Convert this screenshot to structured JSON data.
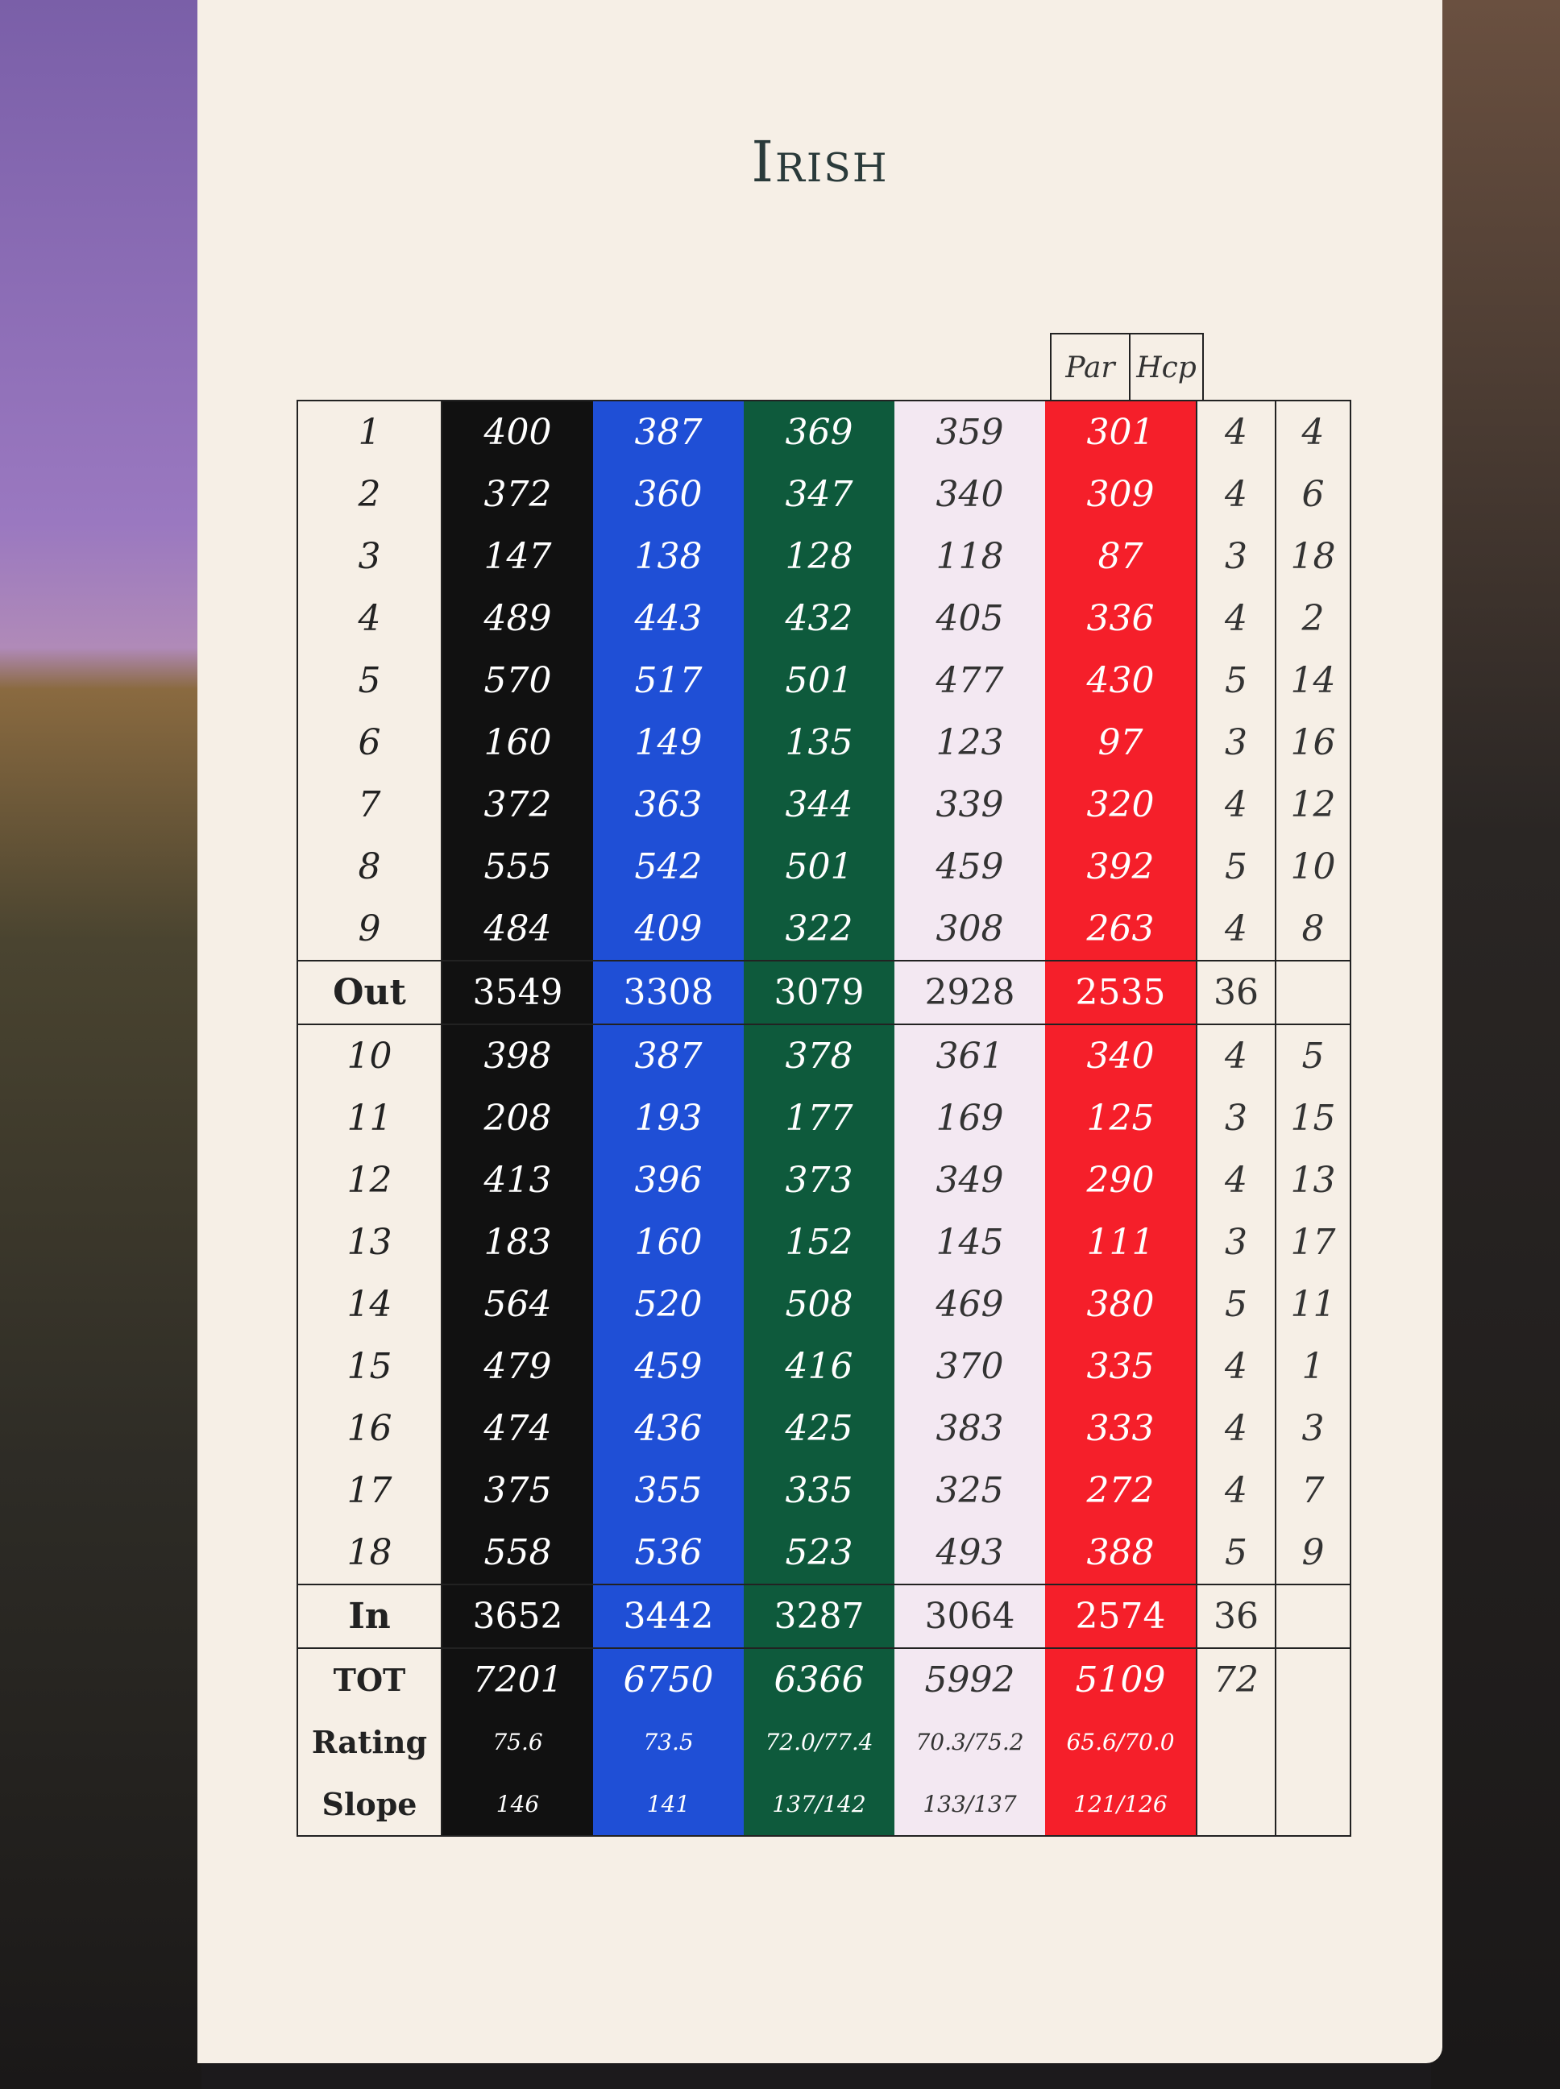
{
  "title": "Irish",
  "header": {
    "par": "Par",
    "hcp": "Hcp"
  },
  "tees": [
    {
      "color": "#111111",
      "text": "#ffffff"
    },
    {
      "color": "#1f4fd6",
      "text": "#ffffff"
    },
    {
      "color": "#0e5a3c",
      "text": "#ffffff"
    },
    {
      "color": "#f3e8f2",
      "text": "#333333"
    },
    {
      "color": "#f51f2a",
      "text": "#ffffff"
    }
  ],
  "rows": [
    {
      "label": "1",
      "yards": [
        "400",
        "387",
        "369",
        "359",
        "301"
      ],
      "par": "4",
      "hcp": "4"
    },
    {
      "label": "2",
      "yards": [
        "372",
        "360",
        "347",
        "340",
        "309"
      ],
      "par": "4",
      "hcp": "6"
    },
    {
      "label": "3",
      "yards": [
        "147",
        "138",
        "128",
        "118",
        "87"
      ],
      "par": "3",
      "hcp": "18"
    },
    {
      "label": "4",
      "yards": [
        "489",
        "443",
        "432",
        "405",
        "336"
      ],
      "par": "4",
      "hcp": "2"
    },
    {
      "label": "5",
      "yards": [
        "570",
        "517",
        "501",
        "477",
        "430"
      ],
      "par": "5",
      "hcp": "14"
    },
    {
      "label": "6",
      "yards": [
        "160",
        "149",
        "135",
        "123",
        "97"
      ],
      "par": "3",
      "hcp": "16"
    },
    {
      "label": "7",
      "yards": [
        "372",
        "363",
        "344",
        "339",
        "320"
      ],
      "par": "4",
      "hcp": "12"
    },
    {
      "label": "8",
      "yards": [
        "555",
        "542",
        "501",
        "459",
        "392"
      ],
      "par": "5",
      "hcp": "10"
    },
    {
      "label": "9",
      "yards": [
        "484",
        "409",
        "322",
        "308",
        "263"
      ],
      "par": "4",
      "hcp": "8"
    },
    {
      "label": "Out",
      "yards": [
        "3549",
        "3308",
        "3079",
        "2928",
        "2535"
      ],
      "par": "36",
      "hcp": "",
      "sum": true
    },
    {
      "label": "10",
      "yards": [
        "398",
        "387",
        "378",
        "361",
        "340"
      ],
      "par": "4",
      "hcp": "5"
    },
    {
      "label": "11",
      "yards": [
        "208",
        "193",
        "177",
        "169",
        "125"
      ],
      "par": "3",
      "hcp": "15"
    },
    {
      "label": "12",
      "yards": [
        "413",
        "396",
        "373",
        "349",
        "290"
      ],
      "par": "4",
      "hcp": "13"
    },
    {
      "label": "13",
      "yards": [
        "183",
        "160",
        "152",
        "145",
        "111"
      ],
      "par": "3",
      "hcp": "17"
    },
    {
      "label": "14",
      "yards": [
        "564",
        "520",
        "508",
        "469",
        "380"
      ],
      "par": "5",
      "hcp": "11"
    },
    {
      "label": "15",
      "yards": [
        "479",
        "459",
        "416",
        "370",
        "335"
      ],
      "par": "4",
      "hcp": "1"
    },
    {
      "label": "16",
      "yards": [
        "474",
        "436",
        "425",
        "383",
        "333"
      ],
      "par": "4",
      "hcp": "3"
    },
    {
      "label": "17",
      "yards": [
        "375",
        "355",
        "335",
        "325",
        "272"
      ],
      "par": "4",
      "hcp": "7"
    },
    {
      "label": "18",
      "yards": [
        "558",
        "536",
        "523",
        "493",
        "388"
      ],
      "par": "5",
      "hcp": "9"
    },
    {
      "label": "In",
      "yards": [
        "3652",
        "3442",
        "3287",
        "3064",
        "2574"
      ],
      "par": "36",
      "hcp": "",
      "sum": true
    },
    {
      "label": "TOT",
      "yards": [
        "7201",
        "6750",
        "6366",
        "5992",
        "5109"
      ],
      "par": "72",
      "hcp": "",
      "tot": true
    },
    {
      "label": "Rating",
      "yards": [
        "75.6",
        "73.5",
        "72.0/77.4",
        "70.3/75.2",
        "65.6/70.0"
      ],
      "par": "",
      "hcp": "",
      "small": true
    },
    {
      "label": "Slope",
      "yards": [
        "146",
        "141",
        "137/142",
        "133/137",
        "121/126"
      ],
      "par": "",
      "hcp": "",
      "small": true,
      "last": true
    }
  ]
}
